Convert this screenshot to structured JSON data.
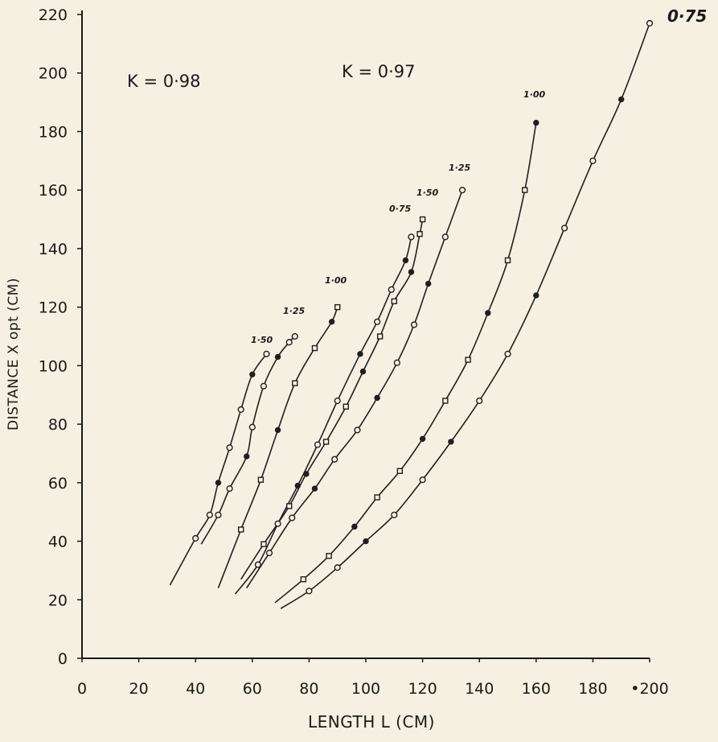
{
  "chart_data": {
    "type": "line",
    "xlabel": "LENGTH L (CM)",
    "ylabel": "DISTANCE X opt (CM)",
    "xlim": [
      0,
      200
    ],
    "ylim": [
      0,
      220
    ],
    "x_ticks": [
      "0",
      "20",
      "40",
      "60",
      "80",
      "100",
      "120",
      "140",
      "160",
      "180",
      "•200"
    ],
    "y_ticks": [
      "0",
      "20",
      "40",
      "60",
      "80",
      "100",
      "120",
      "140",
      "160",
      "180",
      "200",
      "220"
    ],
    "grid": false,
    "annotations": {
      "k_left": "K = 0·98",
      "k_right": "K = 0·97"
    },
    "series": [
      {
        "group": "K=0.98",
        "name": "1·50",
        "x": [
          31,
          40,
          45,
          48,
          52,
          56,
          60,
          65
        ],
        "y": [
          25,
          41,
          49,
          60,
          72,
          85,
          97,
          104
        ]
      },
      {
        "group": "K=0.98",
        "name": "1·25",
        "x": [
          42,
          48,
          52,
          58,
          60,
          64,
          69,
          73,
          75
        ],
        "y": [
          39,
          49,
          58,
          69,
          79,
          93,
          103,
          108,
          110
        ]
      },
      {
        "group": "K=0.98",
        "name": "1·00",
        "x": [
          48,
          56,
          63,
          69,
          75,
          82,
          88,
          90
        ],
        "y": [
          24,
          44,
          61,
          78,
          94,
          106,
          115,
          120
        ]
      },
      {
        "group": "K=0.97",
        "name": "0·75",
        "x": [
          54,
          62,
          69,
          76,
          83,
          90,
          98,
          104,
          109,
          114,
          116
        ],
        "y": [
          22,
          32,
          46,
          59,
          73,
          88,
          104,
          115,
          126,
          136,
          144
        ]
      },
      {
        "group": "K=0.97",
        "name": "1·50",
        "x": [
          56,
          64,
          73,
          79,
          86,
          93,
          99,
          105,
          110,
          116,
          119,
          120
        ],
        "y": [
          27,
          39,
          52,
          63,
          74,
          86,
          98,
          110,
          122,
          132,
          145,
          150
        ]
      },
      {
        "group": "K=0.97",
        "name": "1·25",
        "x": [
          58,
          66,
          74,
          82,
          89,
          97,
          104,
          111,
          117,
          122,
          128,
          134
        ],
        "y": [
          24,
          36,
          48,
          58,
          68,
          78,
          89,
          101,
          114,
          128,
          144,
          160
        ]
      },
      {
        "group": "K=0.97",
        "name": "1·00",
        "x": [
          68,
          78,
          87,
          96,
          104,
          112,
          120,
          128,
          136,
          143,
          150,
          156,
          160
        ],
        "y": [
          19,
          27,
          35,
          45,
          55,
          64,
          75,
          88,
          102,
          118,
          136,
          160,
          183
        ]
      },
      {
        "group": "K=0.97",
        "name": "0·75",
        "x": [
          70,
          80,
          90,
          100,
          110,
          120,
          130,
          140,
          150,
          160,
          170,
          180,
          190,
          200
        ],
        "y": [
          17,
          23,
          31,
          40,
          49,
          61,
          74,
          88,
          104,
          124,
          147,
          170,
          191,
          217
        ]
      }
    ]
  },
  "curve_labels": [
    "1·50",
    "1·25",
    "1·00",
    "0·75",
    "1·50",
    "1·25",
    "1·00",
    "0·75"
  ]
}
